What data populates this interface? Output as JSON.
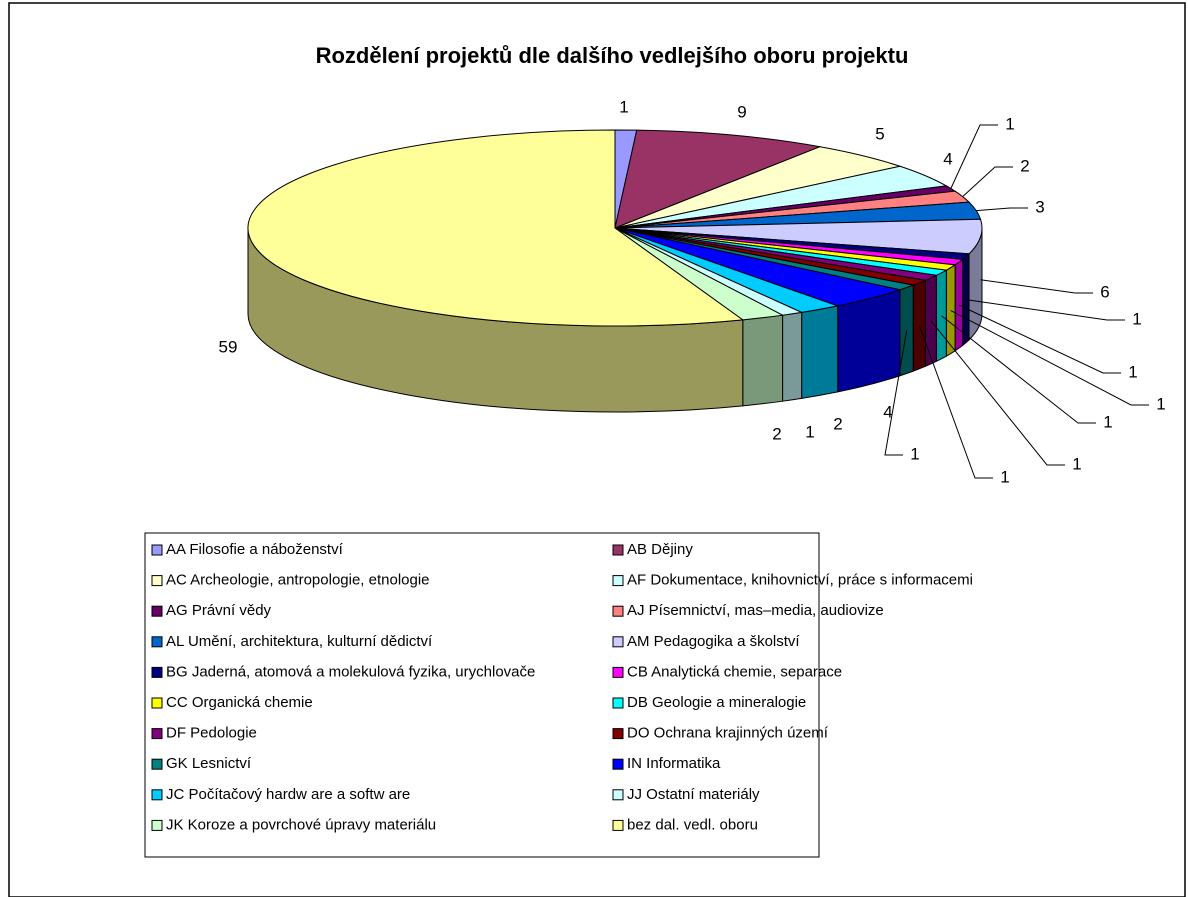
{
  "chart_data": {
    "type": "pie",
    "three_d": true,
    "title": "Rozdělení projektů dle dalšího vedlejšího oboru projektu",
    "categories": [
      "AA Filosofie a náboženství",
      "AB Dějiny",
      "AC Archeologie, antropologie, etnologie",
      "AF Dokumentace, knihovnictví, práce s informacemi",
      "AG Právní vědy",
      "AJ Písemnictví, mas–media, audiovize",
      "AL Umění, architektura, kulturní dědictví",
      "AM Pedagogika a školství",
      "BG Jaderná, atomová a molekulová fyzika, urychlovače",
      "CB Analytická chemie, separace",
      "CC Organická chemie",
      "DB Geologie a mineralogie",
      "DF Pedologie",
      "DO Ochrana krajinných území",
      "GK Lesnictví",
      "IN Informatika",
      "JC Počítačový hardw are a softw are",
      "JJ Ostatní materiály",
      "JK Koroze a povrchové úpravy materiálu",
      "bez dal. vedl. oboru"
    ],
    "values": [
      1,
      9,
      5,
      4,
      1,
      2,
      3,
      6,
      1,
      1,
      1,
      1,
      1,
      1,
      1,
      4,
      2,
      1,
      2,
      59
    ],
    "colors": [
      "#9999FF",
      "#993366",
      "#FFFFCC",
      "#CCFFFF",
      "#660066",
      "#FF8080",
      "#0066CC",
      "#CCCCFF",
      "#000080",
      "#FF00FF",
      "#FFFF00",
      "#00FFFF",
      "#800080",
      "#800000",
      "#008080",
      "#0000FF",
      "#00CCFF",
      "#CCFFFF",
      "#CCFFCC",
      "#FFFF99"
    ],
    "legend": "bottom"
  }
}
